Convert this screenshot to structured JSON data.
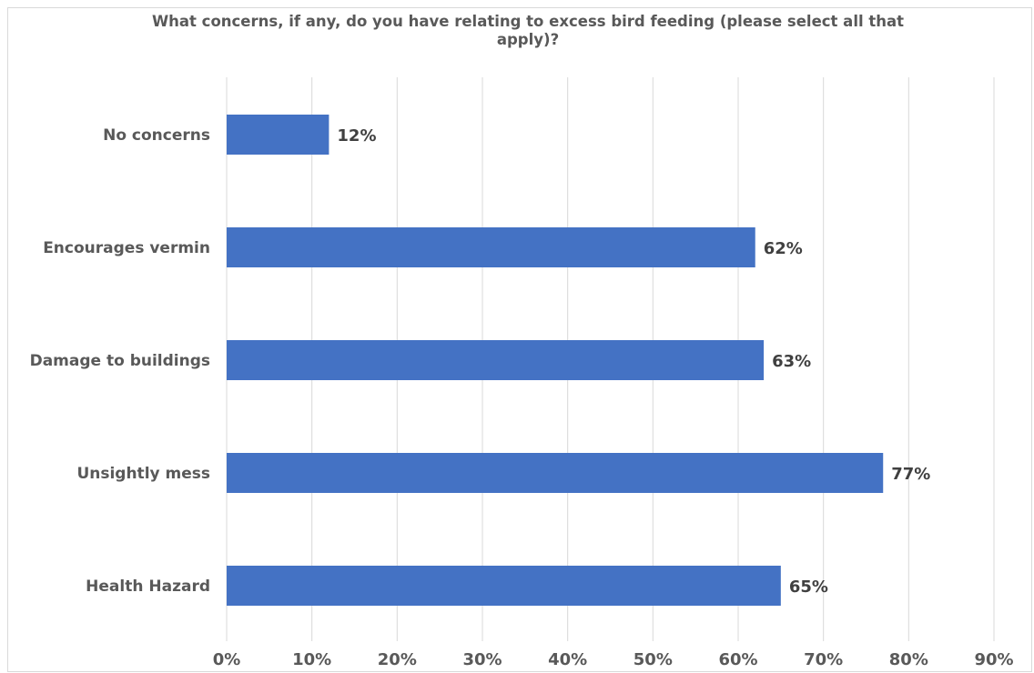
{
  "chart_data": {
    "type": "bar",
    "orientation": "horizontal",
    "title": "What concerns, if any, do you have relating to excess bird feeding (please select all that apply)?",
    "xlabel": "",
    "ylabel": "",
    "categories": [
      "No concerns",
      "Encourages vermin",
      "Damage to buildings",
      "Unsightly mess",
      "Health Hazard"
    ],
    "values": [
      12,
      62,
      63,
      77,
      65
    ],
    "value_labels": [
      "12%",
      "62%",
      "63%",
      "77%",
      "65%"
    ],
    "xlim": [
      0,
      90
    ],
    "x_ticks": [
      "0%",
      "10%",
      "20%",
      "30%",
      "40%",
      "50%",
      "60%",
      "70%",
      "80%",
      "90%"
    ],
    "grid": "vertical",
    "legend": "none",
    "colors": {
      "bar": "#4472c4",
      "grid": "#d9d9d9",
      "text": "#595959",
      "data_label": "#404040"
    }
  }
}
